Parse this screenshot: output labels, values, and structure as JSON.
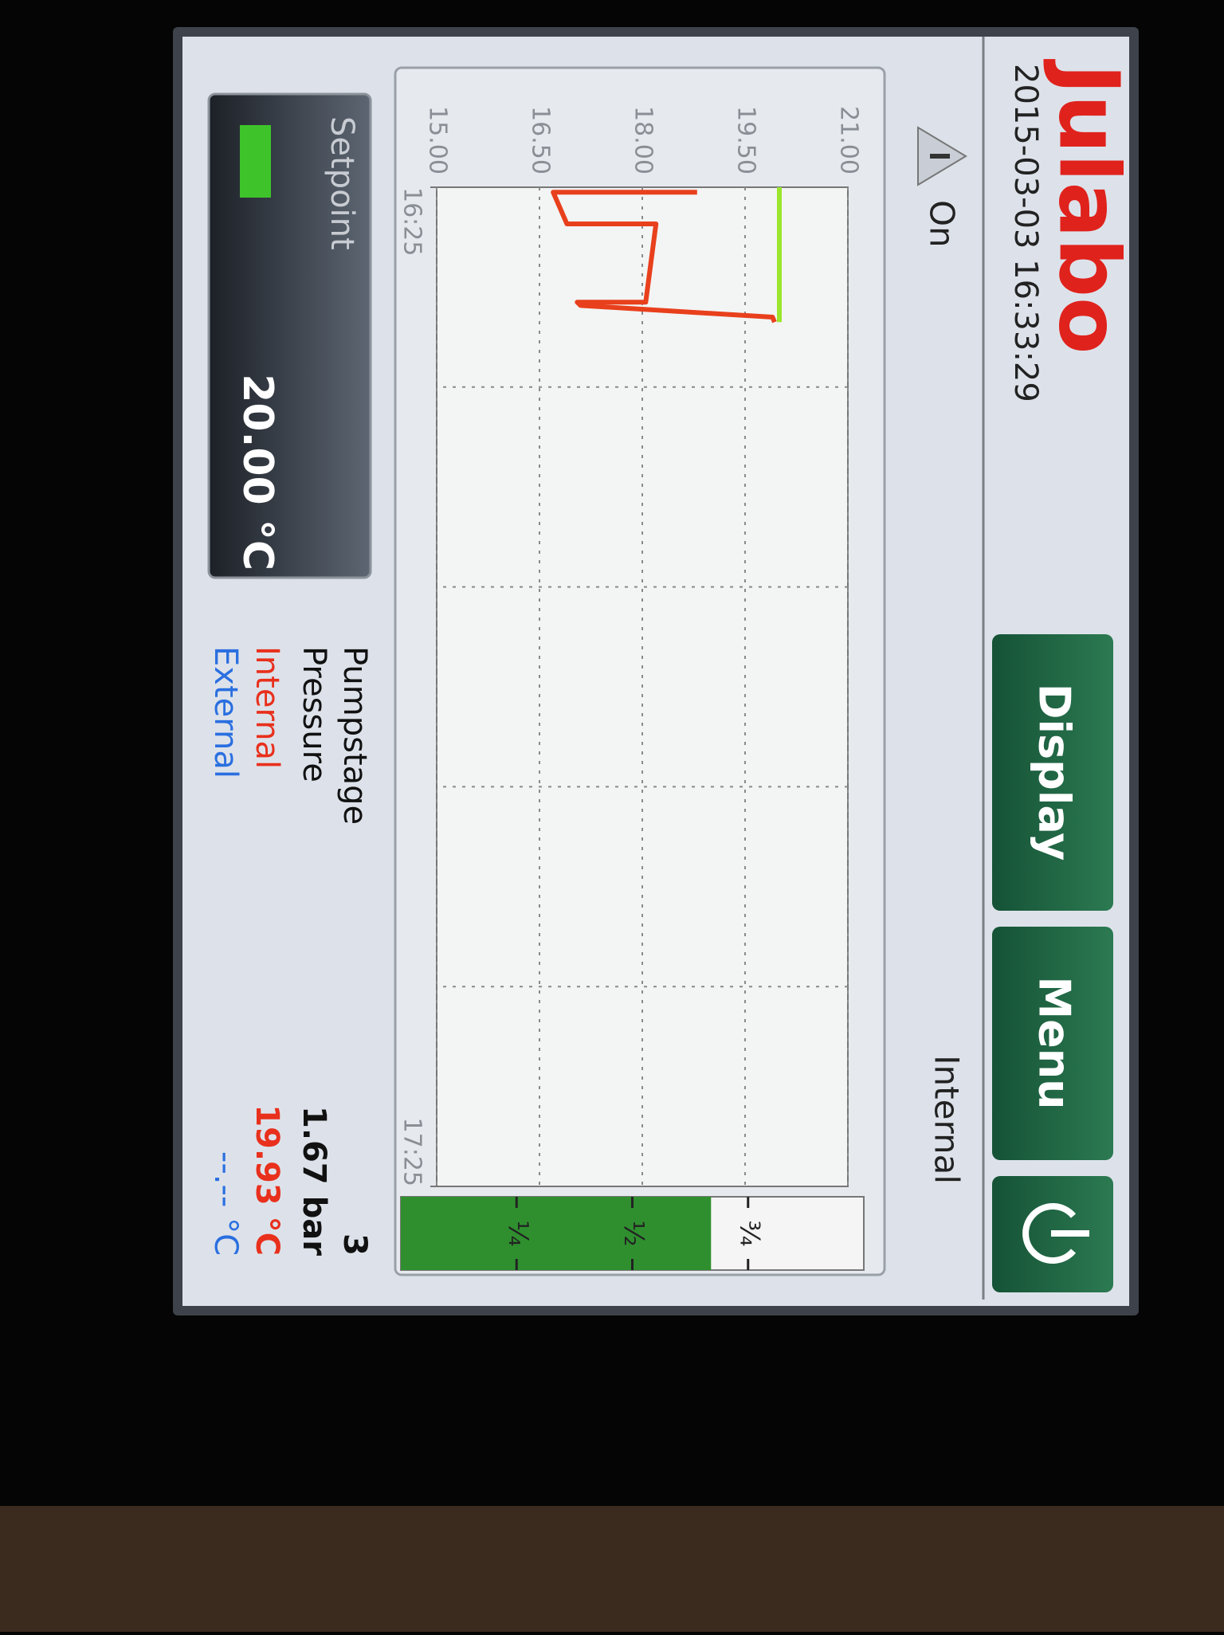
{
  "header": {
    "brand": "Julabo",
    "datetime": "2015-03-03 16:33:29"
  },
  "buttons": [
    "Display",
    "Menu"
  ],
  "status": {
    "state": "On",
    "channel": "Internal"
  },
  "chart_data": {
    "type": "line",
    "xlim": [
      0,
      60
    ],
    "xticks": [
      {
        "value": 0,
        "label": "16:25"
      },
      {
        "value": 60,
        "label": "17:25"
      }
    ],
    "xgrid": [
      12,
      24,
      36,
      48
    ],
    "ylim": [
      15,
      21
    ],
    "yticks": [
      {
        "value": 15,
        "label": "15.00"
      },
      {
        "value": 16.5,
        "label": "16.50"
      },
      {
        "value": 18,
        "label": "18.00"
      },
      {
        "value": 19.5,
        "label": "19.50"
      },
      {
        "value": 21,
        "label": "21.00"
      }
    ],
    "grid": true,
    "series": [
      {
        "color": "#e8401c",
        "x": [
          0.3,
          0.3,
          2.2,
          2.2,
          6.9,
          6.9,
          7.1,
          7.8,
          8.1
        ],
        "values": [
          18.8,
          16.7,
          16.9,
          18.2,
          18.05,
          17.05,
          17.1,
          19.9,
          19.93
        ]
      },
      {
        "color": "#9ae62c",
        "x": [
          0,
          8.1
        ],
        "values": [
          20,
          20
        ]
      }
    ]
  },
  "power": {
    "value": 0.67,
    "color": "#2f8f2f",
    "ticks": [
      {
        "value": 0.25,
        "label": "¼"
      },
      {
        "value": 0.5,
        "label": "½"
      },
      {
        "value": 0.75,
        "label": "¾"
      }
    ]
  },
  "setpoint": {
    "label": "Setpoint",
    "value": "20.00 °C"
  },
  "readings": [
    {
      "label": "Pumpstage",
      "value": "3"
    },
    {
      "label": "Pressure",
      "value": "1.67 bar"
    },
    {
      "label": "Internal",
      "value": "19.93 °C"
    },
    {
      "label": "External",
      "value": "--.-- °C"
    }
  ]
}
